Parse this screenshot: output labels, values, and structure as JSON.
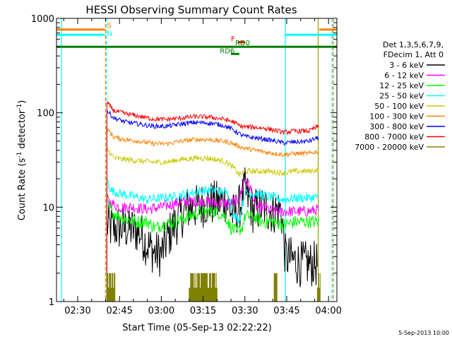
{
  "chart_data": {
    "type": "line",
    "title": "HESSI Observing Summary Count Rates",
    "xlabel": "Start Time (05-Sep-13 02:22:22)",
    "ylabel_main": "Count Rate (s",
    "ylabel_sup1": "-1",
    "ylabel_mid": " detector",
    "ylabel_sup2": "-1",
    "ylabel_end": ")",
    "y_scale": "log",
    "ylim": [
      1,
      1000
    ],
    "y_ticks": [
      {
        "value": 1,
        "label": "1"
      },
      {
        "value": 10,
        "label": "10"
      },
      {
        "value": 100,
        "label": "100"
      },
      {
        "value": 1000,
        "label": "1000"
      }
    ],
    "x_ticks": [
      "02:30",
      "02:45",
      "03:00",
      "03:15",
      "03:30",
      "03:45",
      "04:00"
    ],
    "x_tick_minutes": [
      30,
      45,
      60,
      75,
      90,
      105,
      120
    ],
    "xlim_minutes": [
      22.4,
      123
    ],
    "legend_placement": "right",
    "legend_header": [
      "Det 1,3,5,6,7,9,",
      "FDecim 1, Att 0"
    ],
    "timestamp": "5-Sep-2013 10:00",
    "flag_labels": [
      {
        "text": "S",
        "color": "#ff8000",
        "minute": 40.5,
        "y": 800
      },
      {
        "text": "N",
        "color": "#00ffff",
        "minute": 40.5,
        "y": 650
      },
      {
        "text": "F",
        "color": "#ff0000",
        "minute": 85,
        "y": 570
      },
      {
        "text": "RD0",
        "color": "#008000",
        "minute": 86.5,
        "y": 520
      },
      {
        "text": "RD6",
        "color": "#008000",
        "minute": 81,
        "y": 425
      }
    ],
    "flag_bars": [
      {
        "name": "SAA",
        "color": "#ff8000",
        "segments": [
          [
            22.4,
            39.8
          ],
          [
            116.7,
            123
          ]
        ],
        "y": 760
      },
      {
        "name": "Night",
        "color": "#00ffff",
        "segments": [
          [
            22.4,
            39.8
          ],
          [
            104.5,
            123
          ]
        ],
        "y": 670
      },
      {
        "name": "Flare",
        "color": "#ff0000",
        "segments": [
          [
            87.5,
            90
          ]
        ],
        "y": 560
      },
      {
        "name": "RD0",
        "color": "#008000",
        "segments": [
          [
            22.4,
            123
          ]
        ],
        "y": 500
      },
      {
        "name": "RD6",
        "color": "#008000",
        "segments": [
          [
            85,
            88
          ]
        ],
        "y": 420
      }
    ],
    "vlines": [
      {
        "minute": 24.2,
        "color": "#00ffff",
        "style": "solid"
      },
      {
        "minute": 40,
        "color": "#ff8000",
        "style": "dashed"
      },
      {
        "minute": 40.4,
        "color": "#00ffff",
        "style": "dashed"
      },
      {
        "minute": 104.5,
        "color": "#00ffff",
        "style": "solid"
      },
      {
        "minute": 116.3,
        "color": "#a0a000",
        "style": "solid"
      },
      {
        "minute": 121.3,
        "color": "#00ffff",
        "style": "dashed"
      },
      {
        "minute": 121.7,
        "color": "#ff8000",
        "style": "dashed"
      }
    ],
    "series": [
      {
        "name": "3 - 6 keV",
        "color": "#000000",
        "points": [
          [
            40.5,
            6.5
          ],
          [
            42,
            6
          ],
          [
            45,
            6
          ],
          [
            48,
            6
          ],
          [
            52,
            5.5
          ],
          [
            55,
            4
          ],
          [
            58,
            3.2
          ],
          [
            60,
            3.2
          ],
          [
            62,
            4.5
          ],
          [
            64,
            6
          ],
          [
            67,
            8
          ],
          [
            70,
            10
          ],
          [
            73,
            10
          ],
          [
            76,
            11
          ],
          [
            80,
            11
          ],
          [
            83,
            12
          ],
          [
            86,
            8
          ],
          [
            88,
            10
          ],
          [
            90,
            15
          ],
          [
            93,
            9
          ],
          [
            96,
            10
          ],
          [
            100,
            9
          ],
          [
            103,
            9.5
          ],
          [
            104.5,
            3
          ],
          [
            110,
            2.5
          ],
          [
            116,
            2.5
          ]
        ],
        "noise": 0.25
      },
      {
        "name": "6 - 12 keV",
        "color": "#ff00ff",
        "points": [
          [
            40.5,
            12
          ],
          [
            42,
            11
          ],
          [
            45,
            10
          ],
          [
            50,
            10
          ],
          [
            55,
            9.5
          ],
          [
            60,
            10
          ],
          [
            65,
            11
          ],
          [
            70,
            11.5
          ],
          [
            75,
            11.5
          ],
          [
            80,
            11
          ],
          [
            85,
            11
          ],
          [
            88,
            12
          ],
          [
            90,
            20
          ],
          [
            92,
            16
          ],
          [
            94,
            10
          ],
          [
            97,
            10
          ],
          [
            100,
            9
          ],
          [
            104,
            9
          ],
          [
            108,
            9
          ],
          [
            113,
            9
          ],
          [
            116.5,
            9.5
          ]
        ],
        "noise": 0.06
      },
      {
        "name": "12 - 25 keV",
        "color": "#00ff00",
        "points": [
          [
            40.5,
            11
          ],
          [
            42,
            9
          ],
          [
            45,
            8
          ],
          [
            50,
            7
          ],
          [
            55,
            7
          ],
          [
            58,
            6
          ],
          [
            60,
            6.5
          ],
          [
            65,
            7
          ],
          [
            70,
            8
          ],
          [
            75,
            9
          ],
          [
            80,
            9
          ],
          [
            83,
            8
          ],
          [
            85,
            6
          ],
          [
            87,
            5.5
          ],
          [
            89,
            6
          ],
          [
            90,
            8
          ],
          [
            93,
            8
          ],
          [
            96,
            7
          ],
          [
            100,
            7
          ],
          [
            104,
            6.5
          ],
          [
            108,
            7
          ],
          [
            113,
            7
          ],
          [
            116.5,
            7
          ]
        ],
        "noise": 0.07
      },
      {
        "name": "25 - 50 keV",
        "color": "#00ffff",
        "points": [
          [
            40.5,
            20
          ],
          [
            42,
            15
          ],
          [
            45,
            14
          ],
          [
            50,
            13
          ],
          [
            55,
            12
          ],
          [
            60,
            12.5
          ],
          [
            65,
            13
          ],
          [
            70,
            14
          ],
          [
            75,
            15
          ],
          [
            80,
            15
          ],
          [
            84,
            14
          ],
          [
            86,
            8
          ],
          [
            88,
            7.5
          ],
          [
            90,
            14
          ],
          [
            94,
            14
          ],
          [
            98,
            13
          ],
          [
            104,
            12
          ],
          [
            108,
            12.5
          ],
          [
            113,
            12.5
          ],
          [
            116.5,
            13
          ]
        ],
        "noise": 0.05
      },
      {
        "name": "50 - 100 keV",
        "color": "#c8c800",
        "points": [
          [
            40.5,
            42
          ],
          [
            43,
            33
          ],
          [
            47,
            32
          ],
          [
            52,
            31
          ],
          [
            57,
            30
          ],
          [
            62,
            30
          ],
          [
            67,
            32
          ],
          [
            72,
            33
          ],
          [
            77,
            33
          ],
          [
            82,
            31
          ],
          [
            84,
            29
          ],
          [
            86,
            26
          ],
          [
            88,
            22
          ],
          [
            90,
            24
          ],
          [
            94,
            24
          ],
          [
            98,
            24
          ],
          [
            104,
            23
          ],
          [
            108,
            24
          ],
          [
            113,
            24
          ],
          [
            116.5,
            25
          ]
        ],
        "noise": 0.03
      },
      {
        "name": "100 - 300 keV",
        "color": "#ff8000",
        "points": [
          [
            40.5,
            68
          ],
          [
            43,
            55
          ],
          [
            47,
            52
          ],
          [
            52,
            50
          ],
          [
            57,
            47
          ],
          [
            62,
            47
          ],
          [
            67,
            50
          ],
          [
            72,
            52
          ],
          [
            77,
            52
          ],
          [
            82,
            50
          ],
          [
            85,
            48
          ],
          [
            88,
            44
          ],
          [
            90,
            42
          ],
          [
            94,
            40
          ],
          [
            98,
            38
          ],
          [
            104,
            36
          ],
          [
            108,
            37
          ],
          [
            113,
            37
          ],
          [
            116.5,
            39
          ]
        ],
        "noise": 0.025
      },
      {
        "name": "300 - 800 keV",
        "color": "#0000ff",
        "points": [
          [
            40.5,
            105
          ],
          [
            43,
            88
          ],
          [
            47,
            80
          ],
          [
            52,
            76
          ],
          [
            57,
            72
          ],
          [
            62,
            72
          ],
          [
            67,
            76
          ],
          [
            72,
            79
          ],
          [
            77,
            78
          ],
          [
            82,
            74
          ],
          [
            85,
            68
          ],
          [
            88,
            60
          ],
          [
            90,
            56
          ],
          [
            94,
            54
          ],
          [
            98,
            52
          ],
          [
            104,
            48
          ],
          [
            108,
            49
          ],
          [
            113,
            50
          ],
          [
            116.5,
            55
          ]
        ],
        "noise": 0.025
      },
      {
        "name": "800 - 7000 keV",
        "color": "#ff0000",
        "points": [
          [
            40.5,
            128
          ],
          [
            43,
            105
          ],
          [
            47,
            98
          ],
          [
            52,
            92
          ],
          [
            57,
            86
          ],
          [
            62,
            85
          ],
          [
            67,
            88
          ],
          [
            72,
            91
          ],
          [
            77,
            90
          ],
          [
            82,
            86
          ],
          [
            86,
            80
          ],
          [
            88,
            73
          ],
          [
            90,
            71
          ],
          [
            94,
            70
          ],
          [
            98,
            68
          ],
          [
            104,
            62
          ],
          [
            108,
            64
          ],
          [
            113,
            64
          ],
          [
            116.5,
            72
          ]
        ],
        "noise": 0.025
      },
      {
        "name": "7000 - 20000 keV",
        "color": "#808000",
        "points": [
          [
            22.4,
            1
          ],
          [
            40.5,
            1
          ],
          [
            40.5,
            2
          ],
          [
            40.5,
            1
          ],
          [
            116.6,
            1
          ]
        ],
        "noise": 0
      }
    ]
  }
}
